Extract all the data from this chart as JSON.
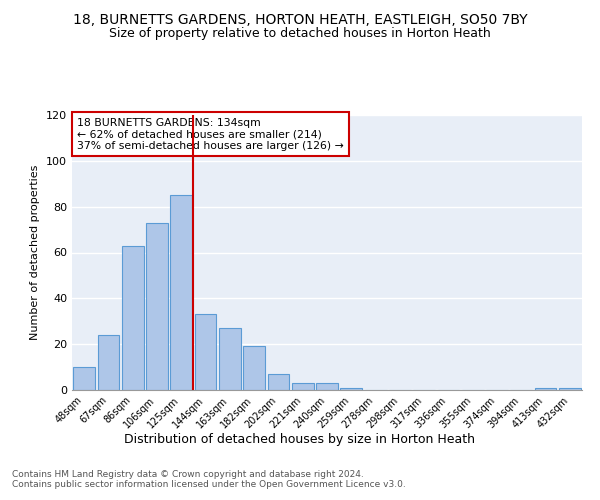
{
  "title": "18, BURNETTS GARDENS, HORTON HEATH, EASTLEIGH, SO50 7BY",
  "subtitle": "Size of property relative to detached houses in Horton Heath",
  "xlabel": "Distribution of detached houses by size in Horton Heath",
  "ylabel": "Number of detached properties",
  "footnote1": "Contains HM Land Registry data © Crown copyright and database right 2024.",
  "footnote2": "Contains public sector information licensed under the Open Government Licence v3.0.",
  "annotation_line1": "18 BURNETTS GARDENS: 134sqm",
  "annotation_line2": "← 62% of detached houses are smaller (214)",
  "annotation_line3": "37% of semi-detached houses are larger (126) →",
  "bar_labels": [
    "48sqm",
    "67sqm",
    "86sqm",
    "106sqm",
    "125sqm",
    "144sqm",
    "163sqm",
    "182sqm",
    "202sqm",
    "221sqm",
    "240sqm",
    "259sqm",
    "278sqm",
    "298sqm",
    "317sqm",
    "336sqm",
    "355sqm",
    "374sqm",
    "394sqm",
    "413sqm",
    "432sqm"
  ],
  "bar_values": [
    10,
    24,
    63,
    73,
    85,
    33,
    27,
    19,
    7,
    3,
    3,
    1,
    0,
    0,
    0,
    0,
    0,
    0,
    0,
    1,
    1
  ],
  "bar_color": "#aec6e8",
  "bar_edge_color": "#5b9bd5",
  "reference_line_color": "#cc0000",
  "ylim": [
    0,
    120
  ],
  "yticks": [
    0,
    20,
    40,
    60,
    80,
    100,
    120
  ],
  "annotation_box_color": "#cc0000",
  "background_color": "#e8eef7"
}
